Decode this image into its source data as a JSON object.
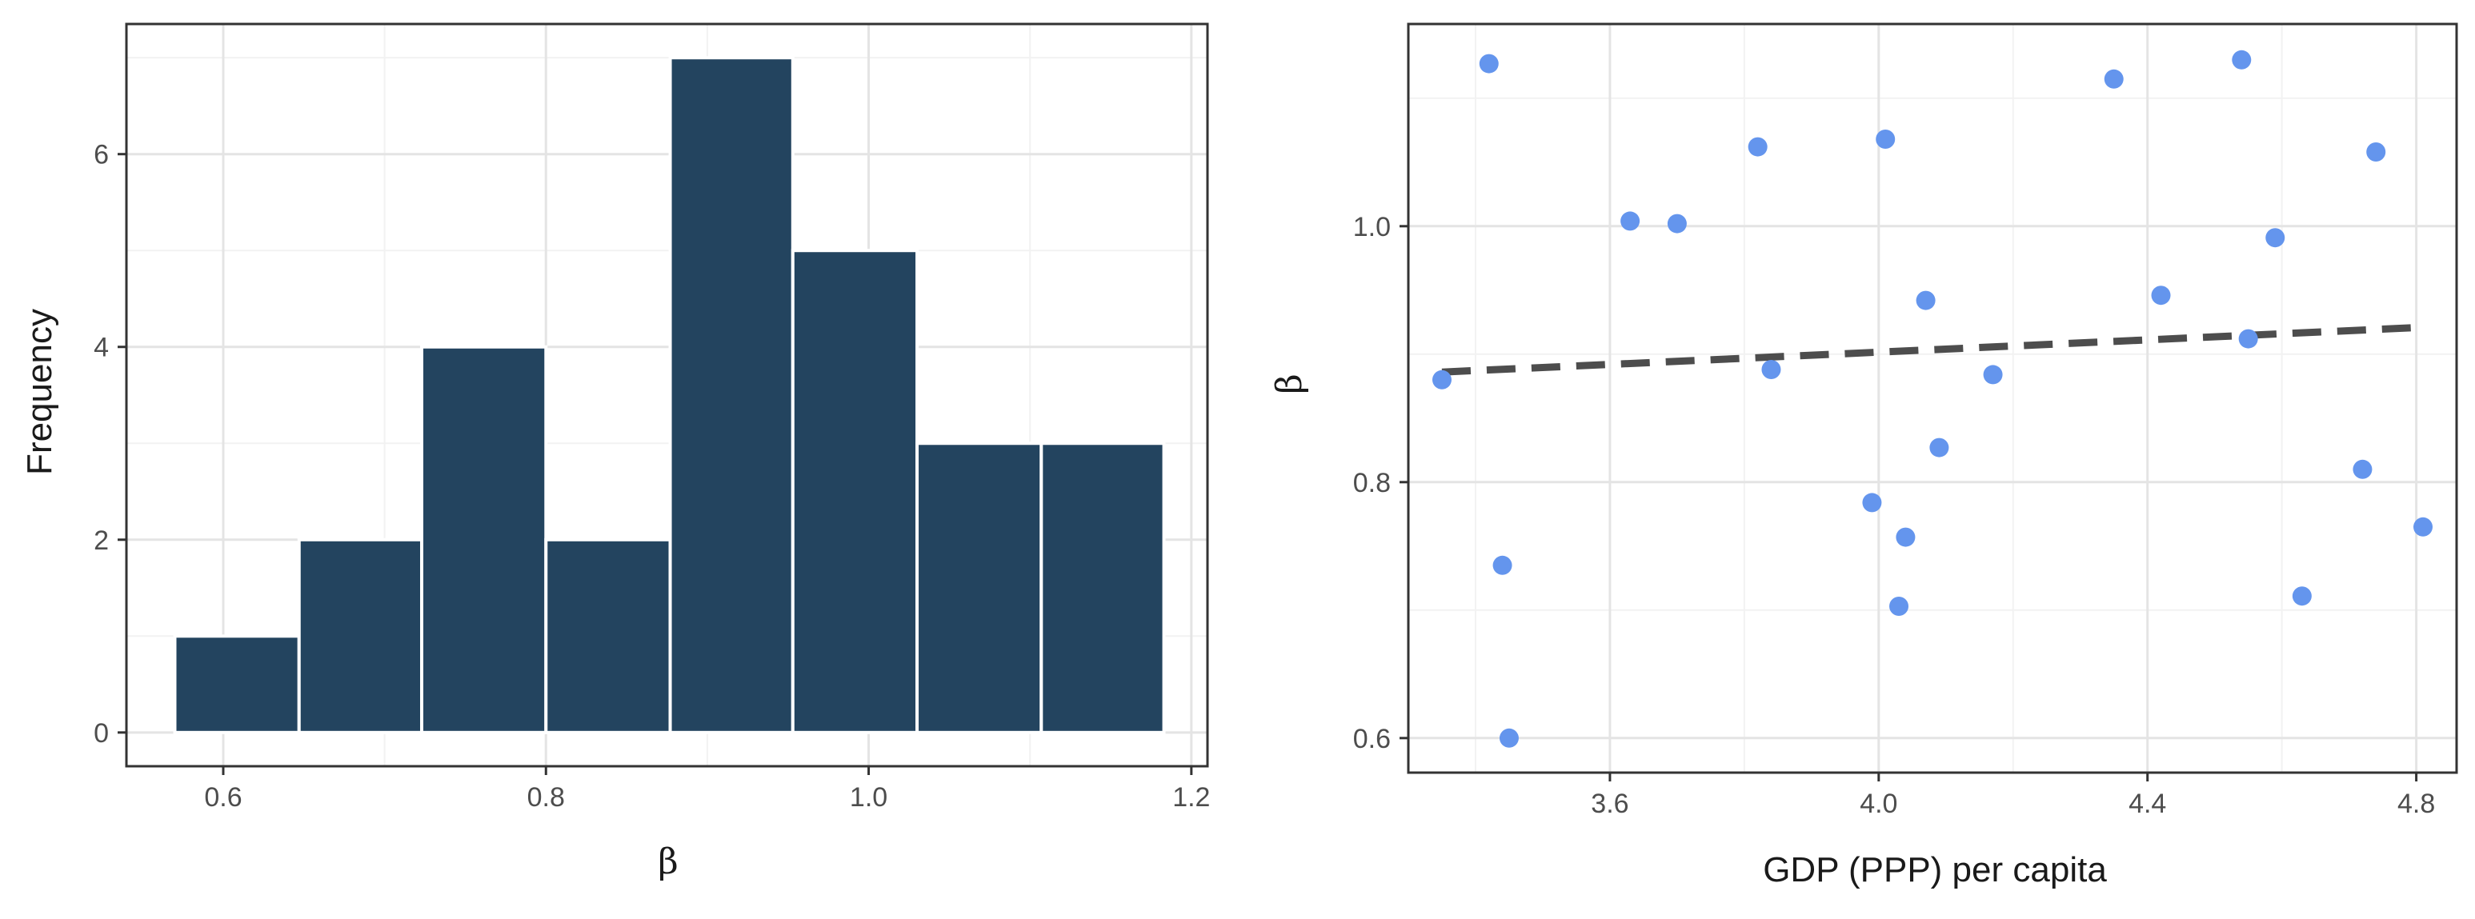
{
  "chart_data": [
    {
      "type": "bar",
      "subtype": "histogram",
      "title": "",
      "xlabel": "β",
      "ylabel": "Frequency",
      "bins": [
        {
          "start": 0.57,
          "end": 0.647,
          "count": 1
        },
        {
          "start": 0.647,
          "end": 0.723,
          "count": 2
        },
        {
          "start": 0.723,
          "end": 0.8,
          "count": 4
        },
        {
          "start": 0.8,
          "end": 0.877,
          "count": 2
        },
        {
          "start": 0.877,
          "end": 0.953,
          "count": 7
        },
        {
          "start": 0.953,
          "end": 1.03,
          "count": 5
        },
        {
          "start": 1.03,
          "end": 1.107,
          "count": 3
        },
        {
          "start": 1.107,
          "end": 1.183,
          "count": 3
        }
      ],
      "xlim": [
        0.54,
        1.21
      ],
      "ylim": [
        -0.35,
        7.35
      ],
      "xticks": [
        0.6,
        0.8,
        1.0,
        1.2
      ],
      "xtick_labels": [
        "0.6",
        "0.8",
        "1.0",
        "1.2"
      ],
      "yticks": [
        0,
        2,
        4,
        6
      ],
      "ytick_labels": [
        "0",
        "2",
        "4",
        "6"
      ],
      "grid": true,
      "bar_color": "#23445f",
      "bar_outline": "#ffffff"
    },
    {
      "type": "scatter",
      "title": "",
      "xlabel": "GDP (PPP) per capita",
      "ylabel": "β",
      "points": [
        {
          "x": 3.35,
          "y": 0.88
        },
        {
          "x": 3.42,
          "y": 1.127
        },
        {
          "x": 3.44,
          "y": 0.735
        },
        {
          "x": 3.45,
          "y": 0.6
        },
        {
          "x": 3.63,
          "y": 1.004
        },
        {
          "x": 3.7,
          "y": 1.002
        },
        {
          "x": 3.82,
          "y": 1.062
        },
        {
          "x": 3.84,
          "y": 0.888
        },
        {
          "x": 3.99,
          "y": 0.784
        },
        {
          "x": 4.01,
          "y": 1.068
        },
        {
          "x": 4.03,
          "y": 0.703
        },
        {
          "x": 4.04,
          "y": 0.757
        },
        {
          "x": 4.07,
          "y": 0.942
        },
        {
          "x": 4.09,
          "y": 0.827
        },
        {
          "x": 4.17,
          "y": 0.884
        },
        {
          "x": 4.35,
          "y": 1.115
        },
        {
          "x": 4.42,
          "y": 0.946
        },
        {
          "x": 4.54,
          "y": 1.13
        },
        {
          "x": 4.55,
          "y": 0.912
        },
        {
          "x": 4.59,
          "y": 0.991
        },
        {
          "x": 4.63,
          "y": 0.711
        },
        {
          "x": 4.72,
          "y": 0.81
        },
        {
          "x": 4.74,
          "y": 1.058
        },
        {
          "x": 4.81,
          "y": 0.765
        }
      ],
      "trendline": {
        "style": "dashed",
        "color": "#4d4d4d",
        "x": [
          3.35,
          4.81
        ],
        "y": [
          0.886,
          0.921
        ]
      },
      "xlim": [
        3.3,
        4.86
      ],
      "ylim": [
        0.573,
        1.158
      ],
      "xticks": [
        3.6,
        4.0,
        4.4,
        4.8
      ],
      "xtick_labels": [
        "3.6",
        "4.0",
        "4.4",
        "4.8"
      ],
      "yticks": [
        0.6,
        0.8,
        1.0
      ],
      "ytick_labels": [
        "0.6",
        "0.8",
        "1.0"
      ],
      "grid": true,
      "point_color": "#6495ed"
    }
  ]
}
